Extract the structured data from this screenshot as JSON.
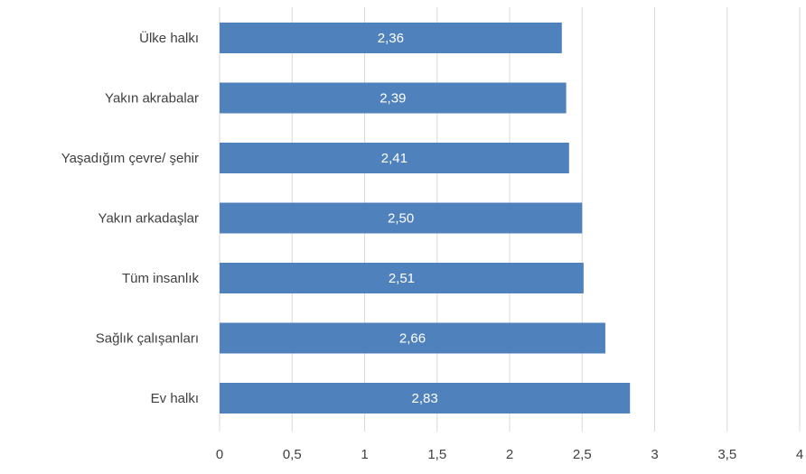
{
  "chart_data": {
    "type": "bar",
    "orientation": "horizontal",
    "categories": [
      "Ülke halkı",
      "Yakın akrabalar",
      "Yaşadığım çevre/ şehir",
      "Yakın arkadaşlar",
      "Tüm insanlık",
      "Sağlık çalışanları",
      "Ev halkı"
    ],
    "values": [
      2.36,
      2.39,
      2.41,
      2.5,
      2.51,
      2.66,
      2.83
    ],
    "value_labels": [
      "2,36",
      "2,39",
      "2,41",
      "2,50",
      "2,51",
      "2,66",
      "2,83"
    ],
    "xlim": [
      0,
      4
    ],
    "x_ticks": [
      0,
      0.5,
      1,
      1.5,
      2,
      2.5,
      3,
      3.5,
      4
    ],
    "x_tick_labels": [
      "0",
      "0,5",
      "1",
      "1,5",
      "2",
      "2,5",
      "3",
      "3,5",
      "4"
    ],
    "grid": true,
    "bar_color": "#4f81bd",
    "title": "",
    "xlabel": "",
    "ylabel": ""
  }
}
